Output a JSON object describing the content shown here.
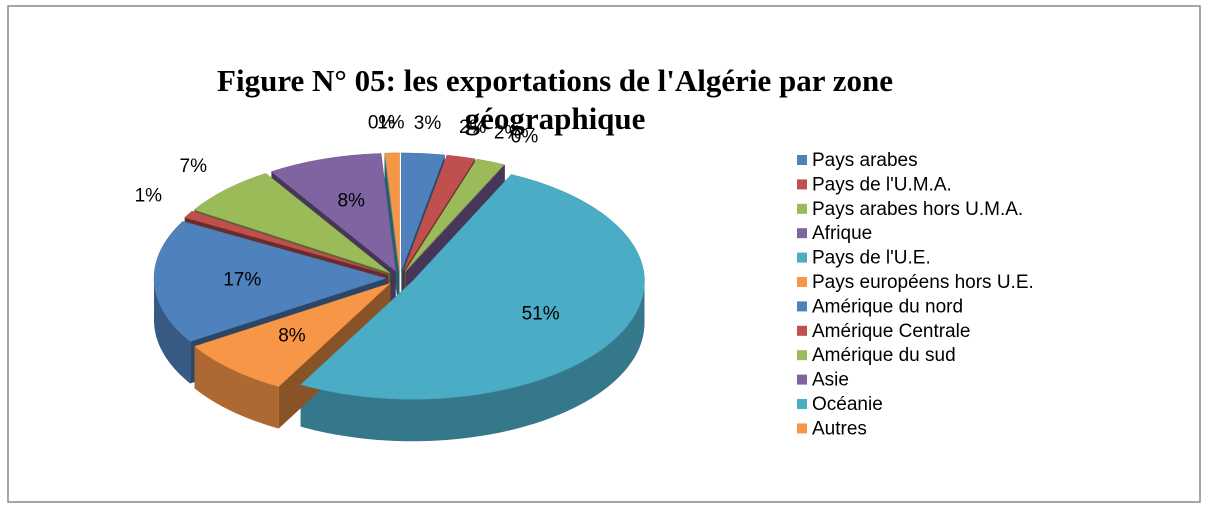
{
  "chart_data": {
    "type": "pie",
    "title": "Figure N° 05: les exportations de l'Algérie par zone géographique",
    "categories": [
      "Pays arabes",
      "Pays de l'U.M.A.",
      "Pays arabes hors U.M.A.",
      "Afrique",
      "Pays de l'U.E.",
      "Pays européens hors U.E.",
      "Amérique du nord",
      "Amérique Centrale",
      "Amérique du sud",
      "Asie",
      "Océanie",
      "Autres"
    ],
    "values": [
      3,
      2,
      2,
      0,
      51,
      8,
      17,
      1,
      7,
      8,
      0,
      1
    ],
    "value_labels": [
      "3%",
      "2%",
      "2%",
      "0%",
      "51%",
      "8%",
      "17%",
      "1%",
      "7%",
      "8%",
      "0%",
      "1%"
    ],
    "colors": [
      "#4f81bd",
      "#c0504d",
      "#9bbb59",
      "#8064a2",
      "#4bacc6",
      "#f79646",
      "#4f81bd",
      "#c0504d",
      "#9bbb59",
      "#8064a2",
      "#4bacc6",
      "#f79646"
    ],
    "legend": "right"
  }
}
